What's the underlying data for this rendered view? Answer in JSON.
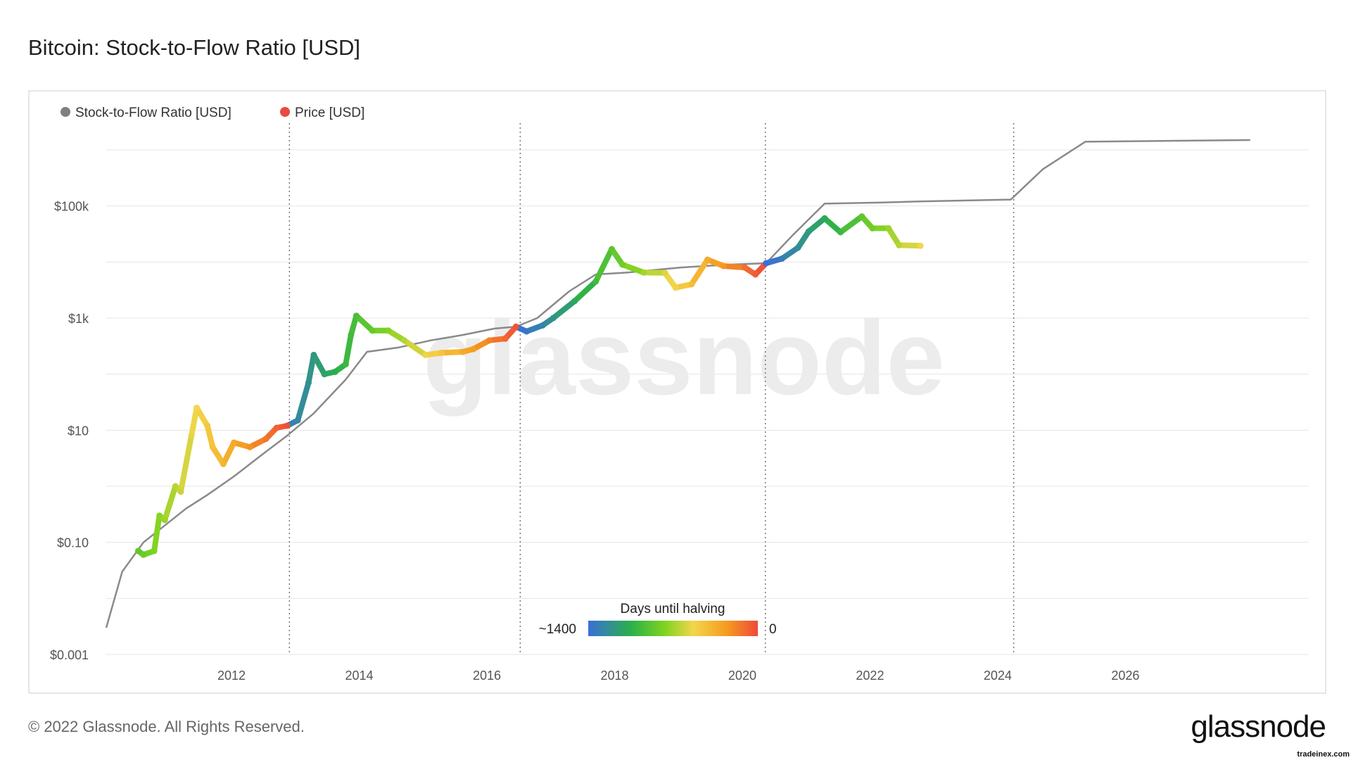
{
  "chart_title": "Bitcoin: Stock-to-Flow Ratio [USD]",
  "watermark": "glassnode",
  "footer": {
    "copyright": "© 2022 Glassnode. All Rights Reserved.",
    "logo": "glassnode",
    "credit": "tradeinex.com"
  },
  "colors": {
    "s2f_line": "#8a8a8a",
    "grid": "#e6e6e6",
    "frame": "#dddddd",
    "halving_line": "#777777",
    "days_gradient": [
      "#3a6fd8",
      "#2ab04a",
      "#7ed321",
      "#f3d64a",
      "#f59a1f",
      "#ef4a3a"
    ]
  },
  "chart_data": {
    "type": "line",
    "title": "Bitcoin: Stock-to-Flow Ratio [USD]",
    "y_scale": "log",
    "ylim": [
      0.001,
      3000000
    ],
    "xlim": [
      "2010-01",
      "2027-12"
    ],
    "y_tick_labels": [
      {
        "value": 100000,
        "label": "$100k"
      },
      {
        "value": 1000,
        "label": "$1k"
      },
      {
        "value": 10,
        "label": "$10"
      },
      {
        "value": 0.1,
        "label": "$0.10"
      },
      {
        "value": 0.001,
        "label": "$0.001"
      }
    ],
    "y_gridlines": [
      0.001,
      0.01,
      0.1,
      1,
      10,
      100,
      1000,
      10000,
      100000,
      1000000
    ],
    "x_tick_labels": [
      "2012",
      "2014",
      "2016",
      "2018",
      "2020",
      "2022",
      "2024",
      "2026"
    ],
    "grid": true,
    "legend": {
      "placement": "top-left",
      "items": [
        {
          "label": "Stock-to-Flow Ratio [USD]",
          "color": "#808080"
        },
        {
          "label": "Price [USD]",
          "color": "#e84a3f"
        }
      ]
    },
    "halvings": [
      "2012-11-28",
      "2016-07-09",
      "2020-05-11",
      "2024-04-01"
    ],
    "colorbar": {
      "title": "Days until halving",
      "min_label": "~1400",
      "max_label": "0"
    },
    "series": [
      {
        "name": "Stock-to-Flow Ratio [USD]",
        "points": [
          [
            "2010-01",
            0.003
          ],
          [
            "2010-04",
            0.03
          ],
          [
            "2010-08",
            0.1
          ],
          [
            "2010-12",
            0.2
          ],
          [
            "2011-04",
            0.4
          ],
          [
            "2011-08",
            0.7
          ],
          [
            "2012-01",
            1.5
          ],
          [
            "2012-06",
            3.5
          ],
          [
            "2012-11",
            8
          ],
          [
            "2013-04",
            20
          ],
          [
            "2013-10",
            80
          ],
          [
            "2014-02",
            250
          ],
          [
            "2014-08",
            300
          ],
          [
            "2015-02",
            400
          ],
          [
            "2015-08",
            500
          ],
          [
            "2016-02",
            650
          ],
          [
            "2016-06",
            700
          ],
          [
            "2016-10",
            1000
          ],
          [
            "2017-04",
            3000
          ],
          [
            "2017-09",
            6000
          ],
          [
            "2018-03",
            6500
          ],
          [
            "2019-01",
            8000
          ],
          [
            "2019-10",
            9000
          ],
          [
            "2020-05",
            9500
          ],
          [
            "2020-10",
            30000
          ],
          [
            "2021-04",
            110000
          ],
          [
            "2022-03",
            115000
          ],
          [
            "2022-09",
            120000
          ],
          [
            "2024-03",
            130000
          ],
          [
            "2024-09",
            450000
          ],
          [
            "2025-05",
            1400000
          ],
          [
            "2027-12",
            1500000
          ]
        ]
      },
      {
        "name": "Price [USD]",
        "points": [
          [
            "2010-07",
            0.07
          ],
          [
            "2010-08",
            0.06
          ],
          [
            "2010-10",
            0.07
          ],
          [
            "2010-11",
            0.3
          ],
          [
            "2010-12",
            0.25
          ],
          [
            "2011-02",
            1.0
          ],
          [
            "2011-03",
            0.8
          ],
          [
            "2011-05",
            8
          ],
          [
            "2011-06",
            25
          ],
          [
            "2011-08",
            12
          ],
          [
            "2011-09",
            5
          ],
          [
            "2011-11",
            2.5
          ],
          [
            "2012-01",
            6
          ],
          [
            "2012-04",
            5
          ],
          [
            "2012-07",
            7
          ],
          [
            "2012-09",
            11
          ],
          [
            "2012-11",
            12
          ],
          [
            "2013-01",
            15
          ],
          [
            "2013-03",
            70
          ],
          [
            "2013-04",
            220
          ],
          [
            "2013-06",
            100
          ],
          [
            "2013-08",
            110
          ],
          [
            "2013-10",
            150
          ],
          [
            "2013-11",
            500
          ],
          [
            "2013-12",
            1100
          ],
          [
            "2014-03",
            600
          ],
          [
            "2014-06",
            600
          ],
          [
            "2014-09",
            400
          ],
          [
            "2015-01",
            220
          ],
          [
            "2015-04",
            240
          ],
          [
            "2015-08",
            250
          ],
          [
            "2015-10",
            280
          ],
          [
            "2016-01",
            400
          ],
          [
            "2016-04",
            430
          ],
          [
            "2016-06",
            700
          ],
          [
            "2016-08",
            580
          ],
          [
            "2016-11",
            740
          ],
          [
            "2017-01",
            1000
          ],
          [
            "2017-05",
            2000
          ],
          [
            "2017-09",
            4500
          ],
          [
            "2017-12",
            17000
          ],
          [
            "2018-02",
            9000
          ],
          [
            "2018-06",
            6500
          ],
          [
            "2018-10",
            6400
          ],
          [
            "2018-12",
            3500
          ],
          [
            "2019-03",
            4000
          ],
          [
            "2019-06",
            11000
          ],
          [
            "2019-09",
            8500
          ],
          [
            "2020-01",
            8000
          ],
          [
            "2020-03",
            6000
          ],
          [
            "2020-05",
            9500
          ],
          [
            "2020-08",
            11500
          ],
          [
            "2020-11",
            18000
          ],
          [
            "2021-01",
            35000
          ],
          [
            "2021-04",
            60000
          ],
          [
            "2021-07",
            34000
          ],
          [
            "2021-11",
            65000
          ],
          [
            "2022-01",
            40000
          ],
          [
            "2022-04",
            40000
          ],
          [
            "2022-06",
            20000
          ],
          [
            "2022-10",
            19500
          ]
        ]
      }
    ]
  }
}
